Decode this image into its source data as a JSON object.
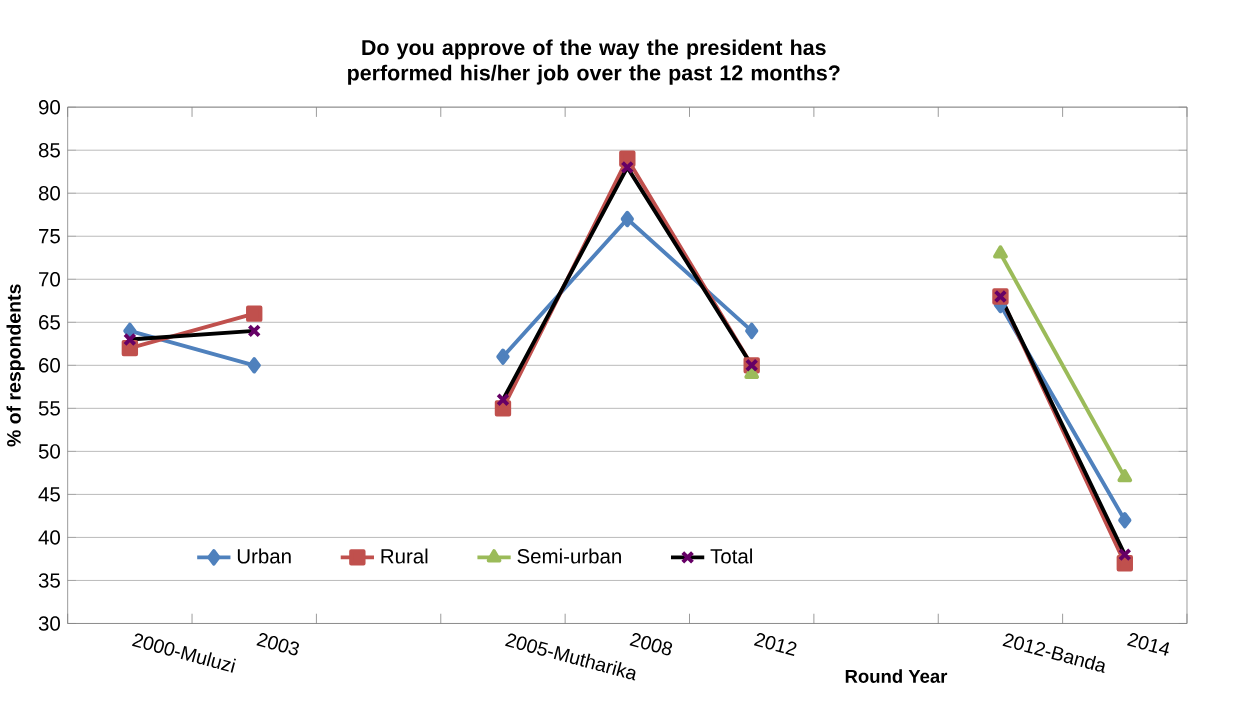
{
  "chart_data": {
    "type": "line",
    "title": "Do you approve of the way the president has performed his/her job over the past 12 months?",
    "xlabel": "Round Year",
    "ylabel": "% of respondents",
    "categories": [
      "2000-Muluzi",
      "2003",
      null,
      "2005-Mutharika",
      "2008",
      "2012",
      null,
      "2012-Banda",
      "2014"
    ],
    "series": [
      {
        "name": "Urban",
        "color": "#4f81bd",
        "marker": "diamond",
        "values": [
          64,
          60,
          null,
          61,
          77,
          64,
          null,
          67,
          42
        ]
      },
      {
        "name": "Rural",
        "color": "#c0504d",
        "marker": "square",
        "values": [
          62,
          66,
          null,
          55,
          84,
          60,
          null,
          68,
          37
        ]
      },
      {
        "name": "Semi-urban",
        "color": "#9bbb59",
        "marker": "triangle",
        "values": [
          null,
          null,
          null,
          null,
          null,
          59,
          null,
          73,
          47
        ]
      },
      {
        "name": "Total",
        "color": "#000000",
        "marker": "cross",
        "values": [
          63,
          64,
          null,
          56,
          83,
          60,
          null,
          68,
          38
        ]
      }
    ],
    "ylim": [
      30,
      90
    ],
    "yticks": [
      30,
      35,
      40,
      45,
      50,
      55,
      60,
      65,
      70,
      75,
      80,
      85,
      90
    ],
    "grid": "y",
    "legend": "bottom"
  }
}
